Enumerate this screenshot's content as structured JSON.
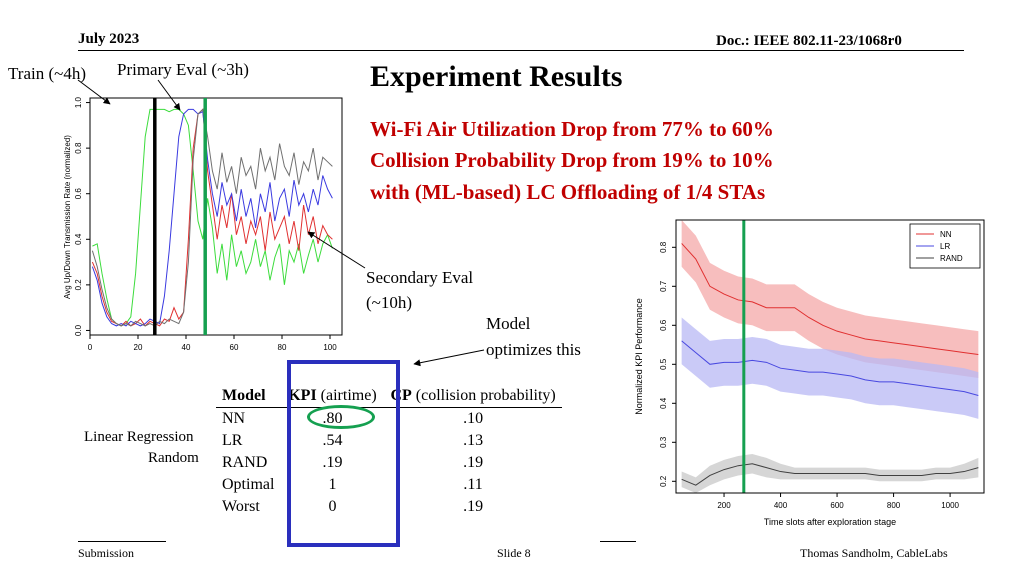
{
  "header": {
    "date": "July 2023",
    "doc": "Doc.: IEEE 802.11-23/1068r0"
  },
  "slide": {
    "title": "Experiment Results",
    "lines": [
      "Wi-Fi Air Utilization Drop from 77% to 60%",
      "Collision Probability Drop from 19% to 10%",
      "with (ML-based) LC Offloading of 1/4 STAs"
    ]
  },
  "annotations": {
    "train": "Train (~4h)",
    "primary": "Primary Eval (~3h)",
    "secondary_1": "Secondary Eval",
    "secondary_2": "(~10h)",
    "model_1": "Model",
    "model_2": "optimizes this",
    "linear_regression": "Linear Regression",
    "random": "Random"
  },
  "table": {
    "headers": {
      "model": "Model",
      "kpi_bold": "KPI",
      "kpi_light": " (airtime)",
      "cp_bold": "CP",
      "cp_light": " (collision probability)"
    },
    "rows": [
      {
        "model": "NN",
        "kpi": ".80",
        "cp": ".10"
      },
      {
        "model": "LR",
        "kpi": ".54",
        "cp": ".13"
      },
      {
        "model": "RAND",
        "kpi": ".19",
        "cp": ".19"
      },
      {
        "model": "Optimal",
        "kpi": "1",
        "cp": ".11"
      },
      {
        "model": "Worst",
        "kpi": "0",
        "cp": ".19"
      }
    ]
  },
  "footer": {
    "left": "Submission",
    "center": "Slide 8",
    "right": "Thomas Sandholm, CableLabs"
  },
  "chart_data": [
    {
      "type": "line",
      "ylabel": "Avg Up/Down Transmission Rate (normalized)",
      "xlim": [
        0,
        105
      ],
      "ylim": [
        -0.02,
        1.02
      ],
      "xticks": [
        "0",
        "20",
        "40",
        "60",
        "80",
        "100"
      ],
      "yticks": [
        "0.0",
        "0.2",
        "0.4",
        "0.6",
        "0.8",
        "1.0"
      ],
      "vlines": [
        {
          "x": 27,
          "color": "#000000"
        },
        {
          "x": 48,
          "color": "#15a050"
        }
      ],
      "series": [
        {
          "color": "#3cdc3c",
          "x": [
            1,
            3,
            5,
            7,
            9,
            11,
            13,
            15,
            17,
            19,
            21,
            23,
            25,
            27,
            29,
            31,
            33,
            35,
            37,
            39,
            41,
            43,
            45,
            47,
            49,
            51,
            53,
            55,
            57,
            59,
            61,
            63,
            65,
            67,
            69,
            71,
            73,
            75,
            77,
            79,
            81,
            83,
            85,
            87,
            89,
            91,
            93,
            95,
            97,
            99,
            101
          ],
          "y": [
            0.37,
            0.38,
            0.25,
            0.14,
            0.05,
            0.03,
            0.02,
            0.03,
            0.06,
            0.25,
            0.55,
            0.85,
            0.97,
            0.97,
            0.97,
            0.97,
            0.96,
            0.97,
            0.97,
            0.95,
            0.9,
            0.7,
            0.48,
            0.4,
            0.58,
            0.45,
            0.25,
            0.38,
            0.22,
            0.42,
            0.28,
            0.35,
            0.25,
            0.3,
            0.4,
            0.28,
            0.35,
            0.22,
            0.32,
            0.38,
            0.2,
            0.35,
            0.3,
            0.38,
            0.25,
            0.33,
            0.4,
            0.3,
            0.38,
            0.42,
            0.36
          ]
        },
        {
          "color": "#e03030",
          "x": [
            1,
            3,
            5,
            7,
            9,
            11,
            13,
            15,
            17,
            19,
            21,
            23,
            25,
            27,
            29,
            31,
            33,
            35,
            37,
            39,
            41,
            43,
            45,
            47,
            49,
            51,
            53,
            55,
            57,
            59,
            61,
            63,
            65,
            67,
            69,
            71,
            73,
            75,
            77,
            79,
            81,
            83,
            85,
            87,
            89,
            91,
            93,
            95,
            97,
            99,
            101
          ],
          "y": [
            0.3,
            0.25,
            0.15,
            0.08,
            0.04,
            0.03,
            0.02,
            0.04,
            0.02,
            0.03,
            0.05,
            0.02,
            0.04,
            0.03,
            0.02,
            0.05,
            0.04,
            0.1,
            0.05,
            0.08,
            0.4,
            0.8,
            0.95,
            0.97,
            0.7,
            0.55,
            0.4,
            0.55,
            0.45,
            0.6,
            0.42,
            0.5,
            0.38,
            0.48,
            0.42,
            0.5,
            0.35,
            0.52,
            0.4,
            0.45,
            0.5,
            0.38,
            0.48,
            0.35,
            0.55,
            0.42,
            0.5,
            0.38,
            0.46,
            0.42,
            0.4
          ]
        },
        {
          "color": "#3a3ae0",
          "x": [
            1,
            3,
            5,
            7,
            9,
            11,
            13,
            15,
            17,
            19,
            21,
            23,
            25,
            27,
            29,
            31,
            33,
            35,
            37,
            39,
            41,
            43,
            45,
            47,
            49,
            51,
            53,
            55,
            57,
            59,
            61,
            63,
            65,
            67,
            69,
            71,
            73,
            75,
            77,
            79,
            81,
            83,
            85,
            87,
            89,
            91,
            93,
            95,
            97,
            99,
            101
          ],
          "y": [
            0.28,
            0.22,
            0.12,
            0.06,
            0.03,
            0.02,
            0.03,
            0.02,
            0.04,
            0.03,
            0.02,
            0.03,
            0.05,
            0.04,
            0.03,
            0.15,
            0.35,
            0.6,
            0.85,
            0.95,
            0.97,
            0.97,
            0.95,
            0.96,
            0.75,
            0.6,
            0.5,
            0.65,
            0.55,
            0.6,
            0.48,
            0.62,
            0.5,
            0.58,
            0.45,
            0.6,
            0.52,
            0.65,
            0.48,
            0.58,
            0.62,
            0.5,
            0.66,
            0.55,
            0.6,
            0.52,
            0.62,
            0.55,
            0.68,
            0.62,
            0.58
          ]
        },
        {
          "color": "#707070",
          "x": [
            1,
            3,
            5,
            7,
            9,
            11,
            13,
            15,
            17,
            19,
            21,
            23,
            25,
            27,
            29,
            31,
            33,
            35,
            37,
            39,
            41,
            43,
            45,
            47,
            49,
            51,
            53,
            55,
            57,
            59,
            61,
            63,
            65,
            67,
            69,
            71,
            73,
            75,
            77,
            79,
            81,
            83,
            85,
            87,
            89,
            91,
            93,
            95,
            97,
            99,
            101
          ],
          "y": [
            0.35,
            0.28,
            0.18,
            0.1,
            0.05,
            0.03,
            0.02,
            0.03,
            0.02,
            0.04,
            0.03,
            0.02,
            0.03,
            0.02,
            0.04,
            0.03,
            0.05,
            0.04,
            0.03,
            0.08,
            0.3,
            0.75,
            0.95,
            0.97,
            0.85,
            0.7,
            0.62,
            0.78,
            0.65,
            0.72,
            0.6,
            0.76,
            0.68,
            0.72,
            0.62,
            0.8,
            0.7,
            0.76,
            0.66,
            0.82,
            0.72,
            0.68,
            0.78,
            0.64,
            0.74,
            0.7,
            0.8,
            0.66,
            0.76,
            0.74,
            0.72
          ]
        }
      ]
    },
    {
      "type": "line",
      "xlabel": "Time slots after exploration stage",
      "ylabel": "Normalized KPI Performance",
      "xlim": [
        30,
        1120
      ],
      "ylim": [
        0.17,
        0.87
      ],
      "xticks": [
        "200",
        "400",
        "600",
        "800",
        "1000"
      ],
      "yticks": [
        "0.2",
        "0.3",
        "0.4",
        "0.5",
        "0.6",
        "0.7",
        "0.8"
      ],
      "legend": [
        "NN",
        "LR",
        "RAND"
      ],
      "legend_position": "top-right",
      "vline": {
        "x": 270,
        "color": "#15a050"
      },
      "series": [
        {
          "name": "NN",
          "color": "#e03030",
          "band": "#f4a8a8",
          "x": [
            50,
            100,
            150,
            200,
            250,
            300,
            350,
            400,
            450,
            500,
            550,
            600,
            650,
            700,
            750,
            800,
            850,
            900,
            950,
            1000,
            1050,
            1100
          ],
          "y": [
            0.81,
            0.77,
            0.7,
            0.68,
            0.665,
            0.66,
            0.645,
            0.645,
            0.645,
            0.62,
            0.6,
            0.585,
            0.575,
            0.565,
            0.56,
            0.555,
            0.55,
            0.545,
            0.54,
            0.535,
            0.53,
            0.525
          ],
          "lo": [
            0.75,
            0.71,
            0.64,
            0.62,
            0.605,
            0.6,
            0.585,
            0.585,
            0.585,
            0.56,
            0.54,
            0.525,
            0.515,
            0.505,
            0.5,
            0.495,
            0.49,
            0.485,
            0.48,
            0.475,
            0.47,
            0.465
          ],
          "hi": [
            0.87,
            0.83,
            0.76,
            0.74,
            0.725,
            0.72,
            0.705,
            0.705,
            0.705,
            0.68,
            0.66,
            0.645,
            0.635,
            0.625,
            0.62,
            0.615,
            0.61,
            0.605,
            0.6,
            0.595,
            0.59,
            0.585
          ]
        },
        {
          "name": "LR",
          "color": "#4848e0",
          "band": "#b8b8f4",
          "x": [
            50,
            100,
            150,
            200,
            250,
            300,
            350,
            400,
            450,
            500,
            550,
            600,
            650,
            700,
            750,
            800,
            850,
            900,
            950,
            1000,
            1050,
            1100
          ],
          "y": [
            0.56,
            0.53,
            0.5,
            0.505,
            0.505,
            0.51,
            0.505,
            0.49,
            0.485,
            0.48,
            0.48,
            0.475,
            0.47,
            0.46,
            0.455,
            0.455,
            0.45,
            0.445,
            0.44,
            0.435,
            0.43,
            0.42
          ],
          "lo": [
            0.5,
            0.47,
            0.44,
            0.445,
            0.445,
            0.45,
            0.445,
            0.43,
            0.425,
            0.42,
            0.42,
            0.415,
            0.41,
            0.4,
            0.395,
            0.395,
            0.39,
            0.385,
            0.38,
            0.375,
            0.37,
            0.36
          ],
          "hi": [
            0.62,
            0.59,
            0.56,
            0.565,
            0.565,
            0.57,
            0.565,
            0.55,
            0.545,
            0.54,
            0.54,
            0.535,
            0.53,
            0.52,
            0.515,
            0.515,
            0.51,
            0.505,
            0.5,
            0.495,
            0.49,
            0.48
          ]
        },
        {
          "name": "RAND",
          "color": "#404040",
          "band": "#c8c8c8",
          "x": [
            50,
            100,
            150,
            200,
            250,
            300,
            350,
            400,
            450,
            500,
            550,
            600,
            650,
            700,
            750,
            800,
            850,
            900,
            950,
            1000,
            1050,
            1100
          ],
          "y": [
            0.205,
            0.19,
            0.215,
            0.23,
            0.24,
            0.245,
            0.235,
            0.225,
            0.22,
            0.22,
            0.22,
            0.22,
            0.22,
            0.22,
            0.215,
            0.215,
            0.215,
            0.215,
            0.22,
            0.22,
            0.225,
            0.235
          ],
          "lo": [
            0.185,
            0.17,
            0.19,
            0.205,
            0.215,
            0.22,
            0.21,
            0.205,
            0.205,
            0.205,
            0.205,
            0.205,
            0.205,
            0.205,
            0.2,
            0.2,
            0.2,
            0.2,
            0.205,
            0.205,
            0.205,
            0.21
          ],
          "hi": [
            0.225,
            0.21,
            0.24,
            0.255,
            0.265,
            0.27,
            0.26,
            0.245,
            0.235,
            0.235,
            0.235,
            0.235,
            0.235,
            0.235,
            0.23,
            0.23,
            0.23,
            0.23,
            0.235,
            0.235,
            0.245,
            0.26
          ]
        }
      ]
    }
  ]
}
